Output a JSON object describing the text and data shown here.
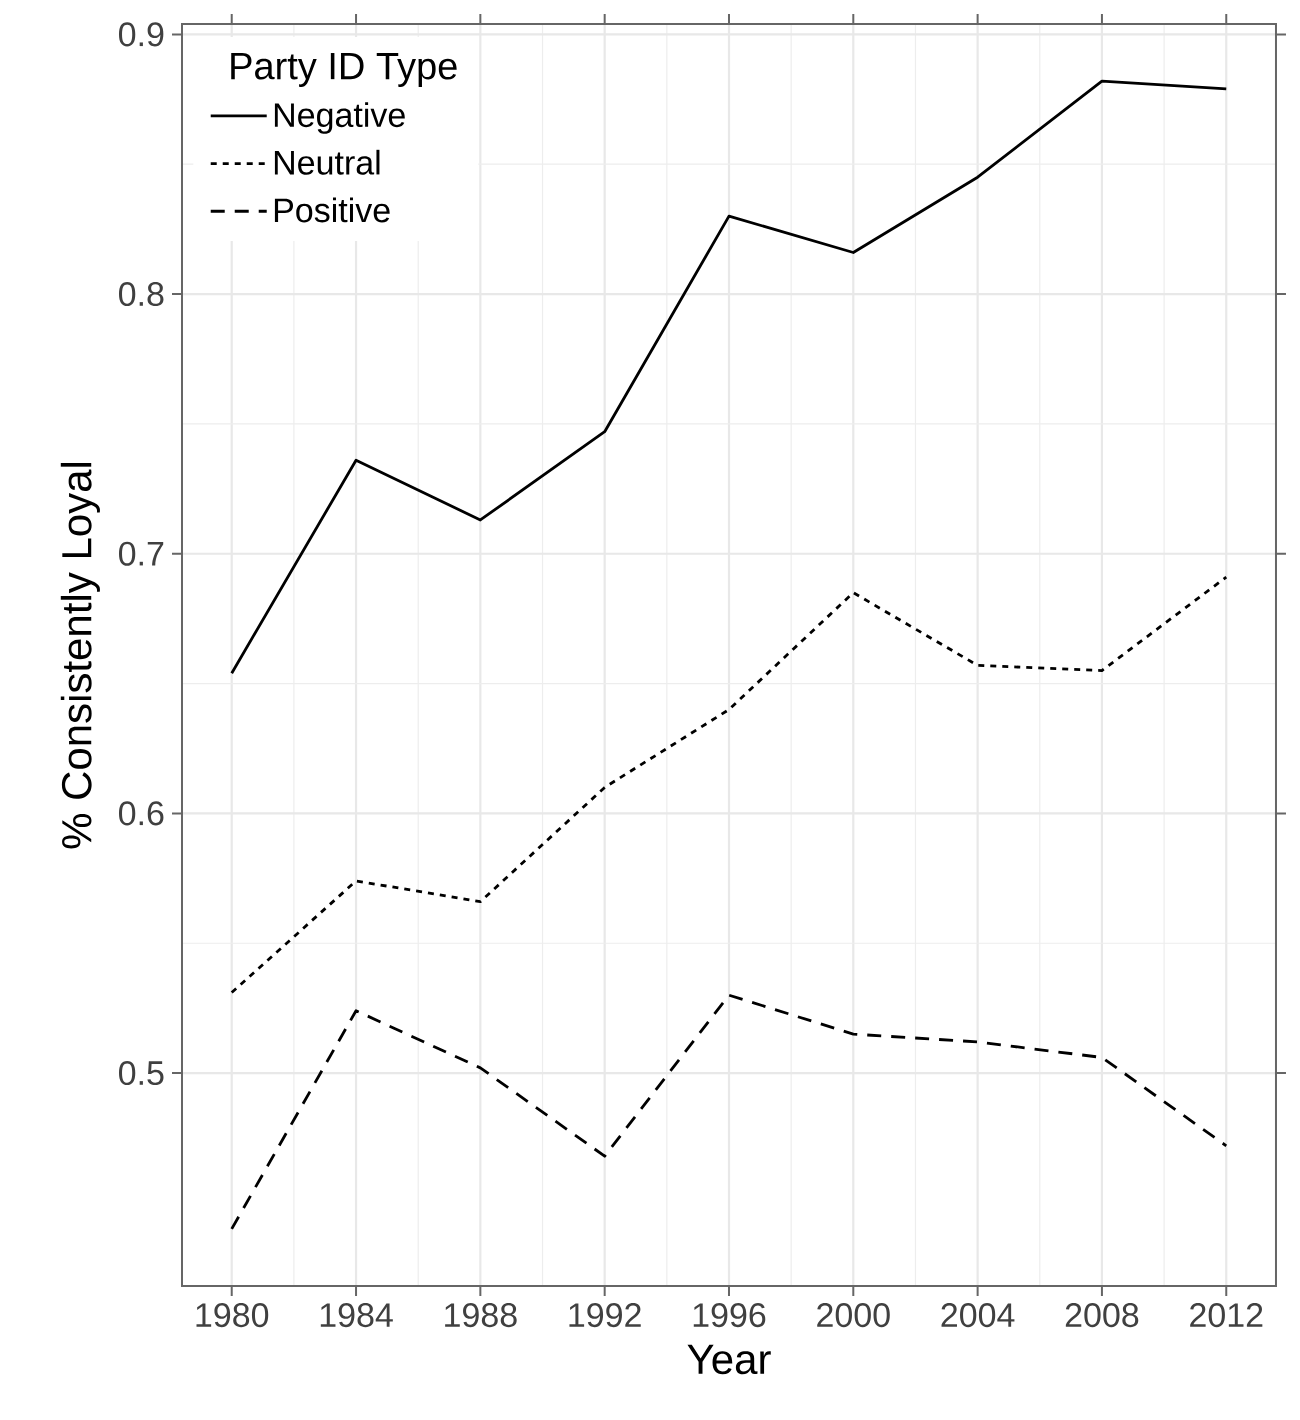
{
  "chart_data": {
    "type": "line",
    "xlabel": "Year",
    "ylabel": "% Consistently Loyal",
    "legend_title": "Party ID Type",
    "x": [
      1980,
      1984,
      1988,
      1992,
      1996,
      2000,
      2004,
      2008,
      2012
    ],
    "series": [
      {
        "name": "Negative",
        "color": "#000000",
        "line_style": "solid",
        "values": [
          0.654,
          0.736,
          0.713,
          0.747,
          0.83,
          0.816,
          0.845,
          0.882,
          0.879
        ]
      },
      {
        "name": "Neutral",
        "color": "#000000",
        "line_style": "dotted",
        "values": [
          0.531,
          0.574,
          0.566,
          0.61,
          0.64,
          0.685,
          0.657,
          0.655,
          0.691
        ]
      },
      {
        "name": "Positive",
        "color": "#000000",
        "line_style": "dashed",
        "values": [
          0.44,
          0.524,
          0.502,
          0.468,
          0.53,
          0.515,
          0.512,
          0.506,
          0.472
        ]
      }
    ],
    "xlim": [
      1978.4,
      2013.6
    ],
    "ylim": [
      0.418,
      0.904
    ],
    "xticks": [
      1980,
      1984,
      1988,
      1992,
      1996,
      2000,
      2004,
      2008,
      2012
    ],
    "yticks": [
      0.5,
      0.6,
      0.7,
      0.8,
      0.9
    ],
    "grid": true,
    "legend": "top left",
    "marker": "none"
  }
}
